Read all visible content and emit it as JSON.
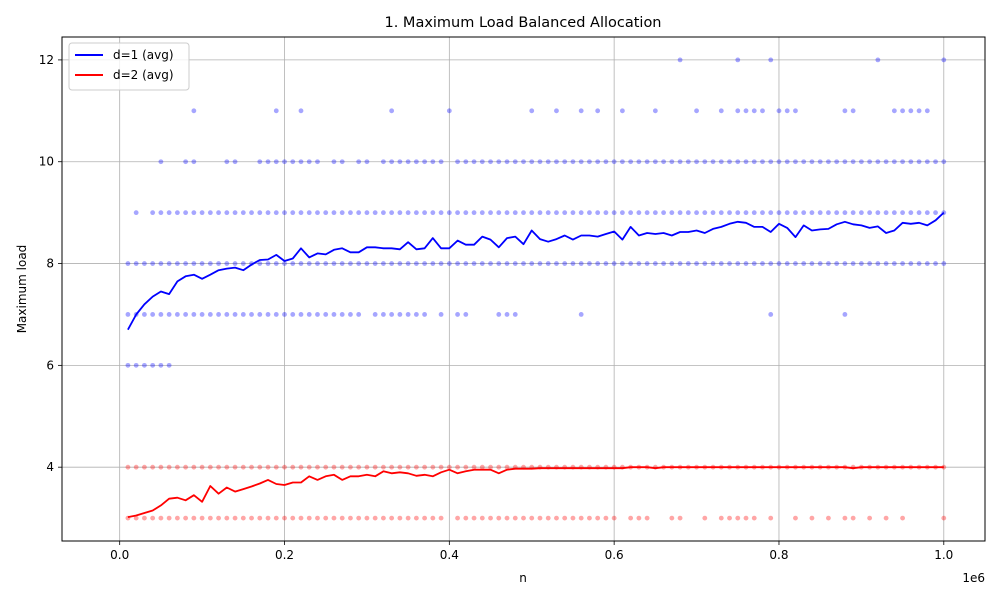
{
  "chart_data": {
    "type": "scatter",
    "title": "1. Maximum Load Balanced Allocation",
    "xlabel": "n",
    "ylabel": "Maximum load",
    "x_offset_label": "1e6",
    "xlim": [
      -70000,
      1050000
    ],
    "ylim": [
      2.55,
      12.45
    ],
    "x_ticks": [
      0,
      200000,
      400000,
      600000,
      800000,
      1000000
    ],
    "x_tick_labels": [
      "0.0",
      "0.2",
      "0.4",
      "0.6",
      "0.8",
      "1.0"
    ],
    "y_ticks": [
      4,
      6,
      8,
      10,
      12
    ],
    "y_tick_labels": [
      "4",
      "6",
      "8",
      "10",
      "12"
    ],
    "grid": true,
    "legend_position": "top-left",
    "colors": {
      "d1": "#0000ff",
      "d2": "#ff0000"
    },
    "series": [
      {
        "name": "d=1 (avg)",
        "color": "#0000ff",
        "x": [
          10000,
          20000,
          30000,
          40000,
          50000,
          60000,
          70000,
          80000,
          90000,
          100000,
          110000,
          120000,
          130000,
          140000,
          150000,
          160000,
          170000,
          180000,
          190000,
          200000,
          210000,
          220000,
          230000,
          240000,
          250000,
          260000,
          270000,
          280000,
          290000,
          300000,
          310000,
          320000,
          330000,
          340000,
          350000,
          360000,
          370000,
          380000,
          390000,
          400000,
          410000,
          420000,
          430000,
          440000,
          450000,
          460000,
          470000,
          480000,
          490000,
          500000,
          510000,
          520000,
          530000,
          540000,
          550000,
          560000,
          570000,
          580000,
          590000,
          600000,
          610000,
          620000,
          630000,
          640000,
          650000,
          660000,
          670000,
          680000,
          690000,
          700000,
          710000,
          720000,
          730000,
          740000,
          750000,
          760000,
          770000,
          780000,
          790000,
          800000,
          810000,
          820000,
          830000,
          840000,
          850000,
          860000,
          870000,
          880000,
          890000,
          900000,
          910000,
          920000,
          930000,
          940000,
          950000,
          960000,
          970000,
          980000,
          990000,
          1000000
        ],
        "y": [
          6.7,
          7.0,
          7.2,
          7.35,
          7.45,
          7.4,
          7.65,
          7.75,
          7.78,
          7.7,
          7.78,
          7.87,
          7.9,
          7.92,
          7.87,
          7.98,
          8.07,
          8.08,
          8.17,
          8.05,
          8.1,
          8.3,
          8.12,
          8.2,
          8.18,
          8.27,
          8.3,
          8.22,
          8.22,
          8.32,
          8.32,
          8.3,
          8.3,
          8.28,
          8.42,
          8.28,
          8.3,
          8.5,
          8.3,
          8.3,
          8.45,
          8.37,
          8.37,
          8.53,
          8.47,
          8.32,
          8.5,
          8.53,
          8.38,
          8.65,
          8.48,
          8.43,
          8.48,
          8.55,
          8.47,
          8.55,
          8.55,
          8.53,
          8.58,
          8.63,
          8.47,
          8.72,
          8.55,
          8.6,
          8.58,
          8.6,
          8.55,
          8.62,
          8.62,
          8.65,
          8.6,
          8.68,
          8.72,
          8.78,
          8.82,
          8.8,
          8.72,
          8.72,
          8.62,
          8.78,
          8.7,
          8.52,
          8.75,
          8.65,
          8.67,
          8.68,
          8.77,
          8.82,
          8.77,
          8.75,
          8.7,
          8.73,
          8.6,
          8.65,
          8.8,
          8.78,
          8.8,
          8.75,
          8.85,
          9.0
        ]
      },
      {
        "name": "d=2 (avg)",
        "color": "#ff0000",
        "x": [
          10000,
          20000,
          30000,
          40000,
          50000,
          60000,
          70000,
          80000,
          90000,
          100000,
          110000,
          120000,
          130000,
          140000,
          150000,
          160000,
          170000,
          180000,
          190000,
          200000,
          210000,
          220000,
          230000,
          240000,
          250000,
          260000,
          270000,
          280000,
          290000,
          300000,
          310000,
          320000,
          330000,
          340000,
          350000,
          360000,
          370000,
          380000,
          390000,
          400000,
          410000,
          420000,
          430000,
          440000,
          450000,
          460000,
          470000,
          480000,
          490000,
          500000,
          510000,
          520000,
          530000,
          540000,
          550000,
          560000,
          570000,
          580000,
          590000,
          600000,
          610000,
          620000,
          630000,
          640000,
          650000,
          660000,
          670000,
          680000,
          690000,
          700000,
          710000,
          720000,
          730000,
          740000,
          750000,
          760000,
          770000,
          780000,
          790000,
          800000,
          810000,
          820000,
          830000,
          840000,
          850000,
          860000,
          870000,
          880000,
          890000,
          900000,
          910000,
          920000,
          930000,
          940000,
          950000,
          960000,
          970000,
          980000,
          990000,
          1000000
        ],
        "y": [
          3.02,
          3.05,
          3.1,
          3.15,
          3.25,
          3.38,
          3.4,
          3.35,
          3.45,
          3.32,
          3.63,
          3.48,
          3.6,
          3.52,
          3.57,
          3.62,
          3.68,
          3.75,
          3.67,
          3.65,
          3.7,
          3.7,
          3.82,
          3.75,
          3.82,
          3.85,
          3.75,
          3.82,
          3.82,
          3.85,
          3.82,
          3.92,
          3.88,
          3.9,
          3.88,
          3.83,
          3.85,
          3.82,
          3.9,
          3.95,
          3.88,
          3.92,
          3.95,
          3.95,
          3.95,
          3.88,
          3.95,
          3.97,
          3.97,
          3.97,
          3.98,
          3.98,
          3.98,
          3.98,
          3.98,
          3.98,
          3.98,
          3.98,
          3.98,
          3.98,
          3.98,
          4.0,
          4.0,
          4.0,
          3.98,
          4.0,
          4.0,
          4.0,
          4.0,
          4.0,
          4.0,
          4.0,
          4.0,
          4.0,
          4.0,
          4.0,
          4.0,
          4.0,
          4.0,
          4.0,
          4.0,
          4.0,
          4.0,
          4.0,
          4.0,
          4.0,
          4.0,
          4.0,
          3.98,
          4.0,
          4.0,
          4.0,
          4.0,
          4.0,
          4.0,
          4.0,
          4.0,
          4.0,
          4.0,
          4.0
        ]
      }
    ],
    "scatter_d1": [
      {
        "y": 6,
        "x": [
          10000,
          20000,
          30000,
          40000,
          50000,
          60000
        ]
      },
      {
        "y": 7,
        "x": [
          10000,
          20000,
          30000,
          40000,
          50000,
          60000,
          70000,
          80000,
          90000,
          100000,
          110000,
          120000,
          130000,
          140000,
          150000,
          160000,
          170000,
          180000,
          190000,
          200000,
          210000,
          220000,
          230000,
          240000,
          250000,
          260000,
          270000,
          280000,
          290000,
          310000,
          320000,
          330000,
          340000,
          350000,
          360000,
          370000,
          390000,
          410000,
          420000,
          460000,
          470000,
          480000,
          560000,
          790000,
          880000
        ]
      },
      {
        "y": 8,
        "x": [
          10000,
          20000,
          30000,
          40000,
          50000,
          60000,
          70000,
          80000,
          90000,
          100000,
          110000,
          120000,
          130000,
          140000,
          150000,
          160000,
          170000,
          180000,
          190000,
          200000,
          210000,
          220000,
          230000,
          240000,
          250000,
          260000,
          270000,
          280000,
          290000,
          300000,
          310000,
          320000,
          330000,
          340000,
          350000,
          360000,
          370000,
          380000,
          390000,
          400000,
          410000,
          420000,
          430000,
          440000,
          450000,
          460000,
          470000,
          480000,
          490000,
          500000,
          510000,
          520000,
          530000,
          540000,
          550000,
          560000,
          570000,
          580000,
          590000,
          600000,
          610000,
          620000,
          630000,
          640000,
          650000,
          660000,
          670000,
          680000,
          690000,
          700000,
          710000,
          720000,
          730000,
          740000,
          750000,
          760000,
          770000,
          780000,
          790000,
          800000,
          810000,
          820000,
          830000,
          840000,
          850000,
          860000,
          870000,
          880000,
          890000,
          900000,
          910000,
          920000,
          930000,
          940000,
          950000,
          960000,
          970000,
          980000,
          990000,
          1000000
        ]
      },
      {
        "y": 9,
        "x": [
          20000,
          40000,
          50000,
          60000,
          70000,
          80000,
          90000,
          100000,
          110000,
          120000,
          130000,
          140000,
          150000,
          160000,
          170000,
          180000,
          190000,
          200000,
          210000,
          220000,
          230000,
          240000,
          250000,
          260000,
          270000,
          280000,
          290000,
          300000,
          310000,
          320000,
          330000,
          340000,
          350000,
          360000,
          370000,
          380000,
          390000,
          400000,
          410000,
          420000,
          430000,
          440000,
          450000,
          460000,
          470000,
          480000,
          490000,
          500000,
          510000,
          520000,
          530000,
          540000,
          550000,
          560000,
          570000,
          580000,
          590000,
          600000,
          610000,
          620000,
          630000,
          640000,
          650000,
          660000,
          670000,
          680000,
          690000,
          700000,
          710000,
          720000,
          730000,
          740000,
          750000,
          760000,
          770000,
          780000,
          790000,
          800000,
          810000,
          820000,
          830000,
          840000,
          850000,
          860000,
          870000,
          880000,
          890000,
          900000,
          910000,
          920000,
          930000,
          940000,
          950000,
          960000,
          970000,
          980000,
          990000,
          1000000
        ]
      },
      {
        "y": 10,
        "x": [
          50000,
          80000,
          90000,
          130000,
          140000,
          170000,
          180000,
          190000,
          200000,
          210000,
          220000,
          230000,
          240000,
          260000,
          270000,
          290000,
          300000,
          320000,
          330000,
          340000,
          350000,
          360000,
          370000,
          380000,
          390000,
          410000,
          420000,
          430000,
          440000,
          450000,
          460000,
          470000,
          480000,
          490000,
          500000,
          510000,
          520000,
          530000,
          540000,
          550000,
          560000,
          570000,
          580000,
          590000,
          600000,
          610000,
          620000,
          630000,
          640000,
          650000,
          660000,
          670000,
          680000,
          690000,
          700000,
          710000,
          720000,
          730000,
          740000,
          750000,
          760000,
          770000,
          780000,
          790000,
          800000,
          810000,
          820000,
          830000,
          840000,
          850000,
          860000,
          870000,
          880000,
          890000,
          900000,
          910000,
          920000,
          930000,
          940000,
          950000,
          960000,
          970000,
          980000,
          990000,
          1000000
        ]
      },
      {
        "y": 11,
        "x": [
          90000,
          190000,
          220000,
          330000,
          400000,
          500000,
          530000,
          560000,
          580000,
          610000,
          650000,
          700000,
          730000,
          750000,
          760000,
          770000,
          780000,
          800000,
          810000,
          820000,
          880000,
          890000,
          940000,
          950000,
          960000,
          970000,
          980000
        ]
      },
      {
        "y": 12,
        "x": [
          680000,
          750000,
          790000,
          920000,
          1000000
        ]
      }
    ],
    "scatter_d2": [
      {
        "y": 3,
        "x": [
          10000,
          20000,
          30000,
          40000,
          50000,
          60000,
          70000,
          80000,
          90000,
          100000,
          110000,
          120000,
          130000,
          140000,
          150000,
          160000,
          170000,
          180000,
          190000,
          200000,
          210000,
          220000,
          230000,
          240000,
          250000,
          260000,
          270000,
          280000,
          290000,
          300000,
          310000,
          320000,
          330000,
          340000,
          350000,
          360000,
          370000,
          380000,
          390000,
          410000,
          420000,
          430000,
          440000,
          450000,
          460000,
          470000,
          480000,
          490000,
          500000,
          510000,
          520000,
          530000,
          540000,
          550000,
          560000,
          570000,
          580000,
          590000,
          600000,
          620000,
          630000,
          640000,
          670000,
          680000,
          710000,
          730000,
          740000,
          750000,
          760000,
          770000,
          790000,
          820000,
          840000,
          860000,
          880000,
          890000,
          910000,
          930000,
          950000,
          1000000
        ]
      },
      {
        "y": 4,
        "x": [
          10000,
          20000,
          30000,
          40000,
          50000,
          60000,
          70000,
          80000,
          90000,
          100000,
          110000,
          120000,
          130000,
          140000,
          150000,
          160000,
          170000,
          180000,
          190000,
          200000,
          210000,
          220000,
          230000,
          240000,
          250000,
          260000,
          270000,
          280000,
          290000,
          300000,
          310000,
          320000,
          330000,
          340000,
          350000,
          360000,
          370000,
          380000,
          390000,
          400000,
          410000,
          420000,
          430000,
          440000,
          450000,
          460000,
          470000,
          480000,
          490000,
          500000,
          510000,
          520000,
          530000,
          540000,
          550000,
          560000,
          570000,
          580000,
          590000,
          600000,
          610000,
          620000,
          630000,
          640000,
          650000,
          660000,
          670000,
          680000,
          690000,
          700000,
          710000,
          720000,
          730000,
          740000,
          750000,
          760000,
          770000,
          780000,
          790000,
          800000,
          810000,
          820000,
          830000,
          840000,
          850000,
          860000,
          870000,
          880000,
          890000,
          900000,
          910000,
          920000,
          930000,
          940000,
          950000,
          960000,
          970000,
          980000,
          990000,
          1000000
        ]
      }
    ]
  }
}
